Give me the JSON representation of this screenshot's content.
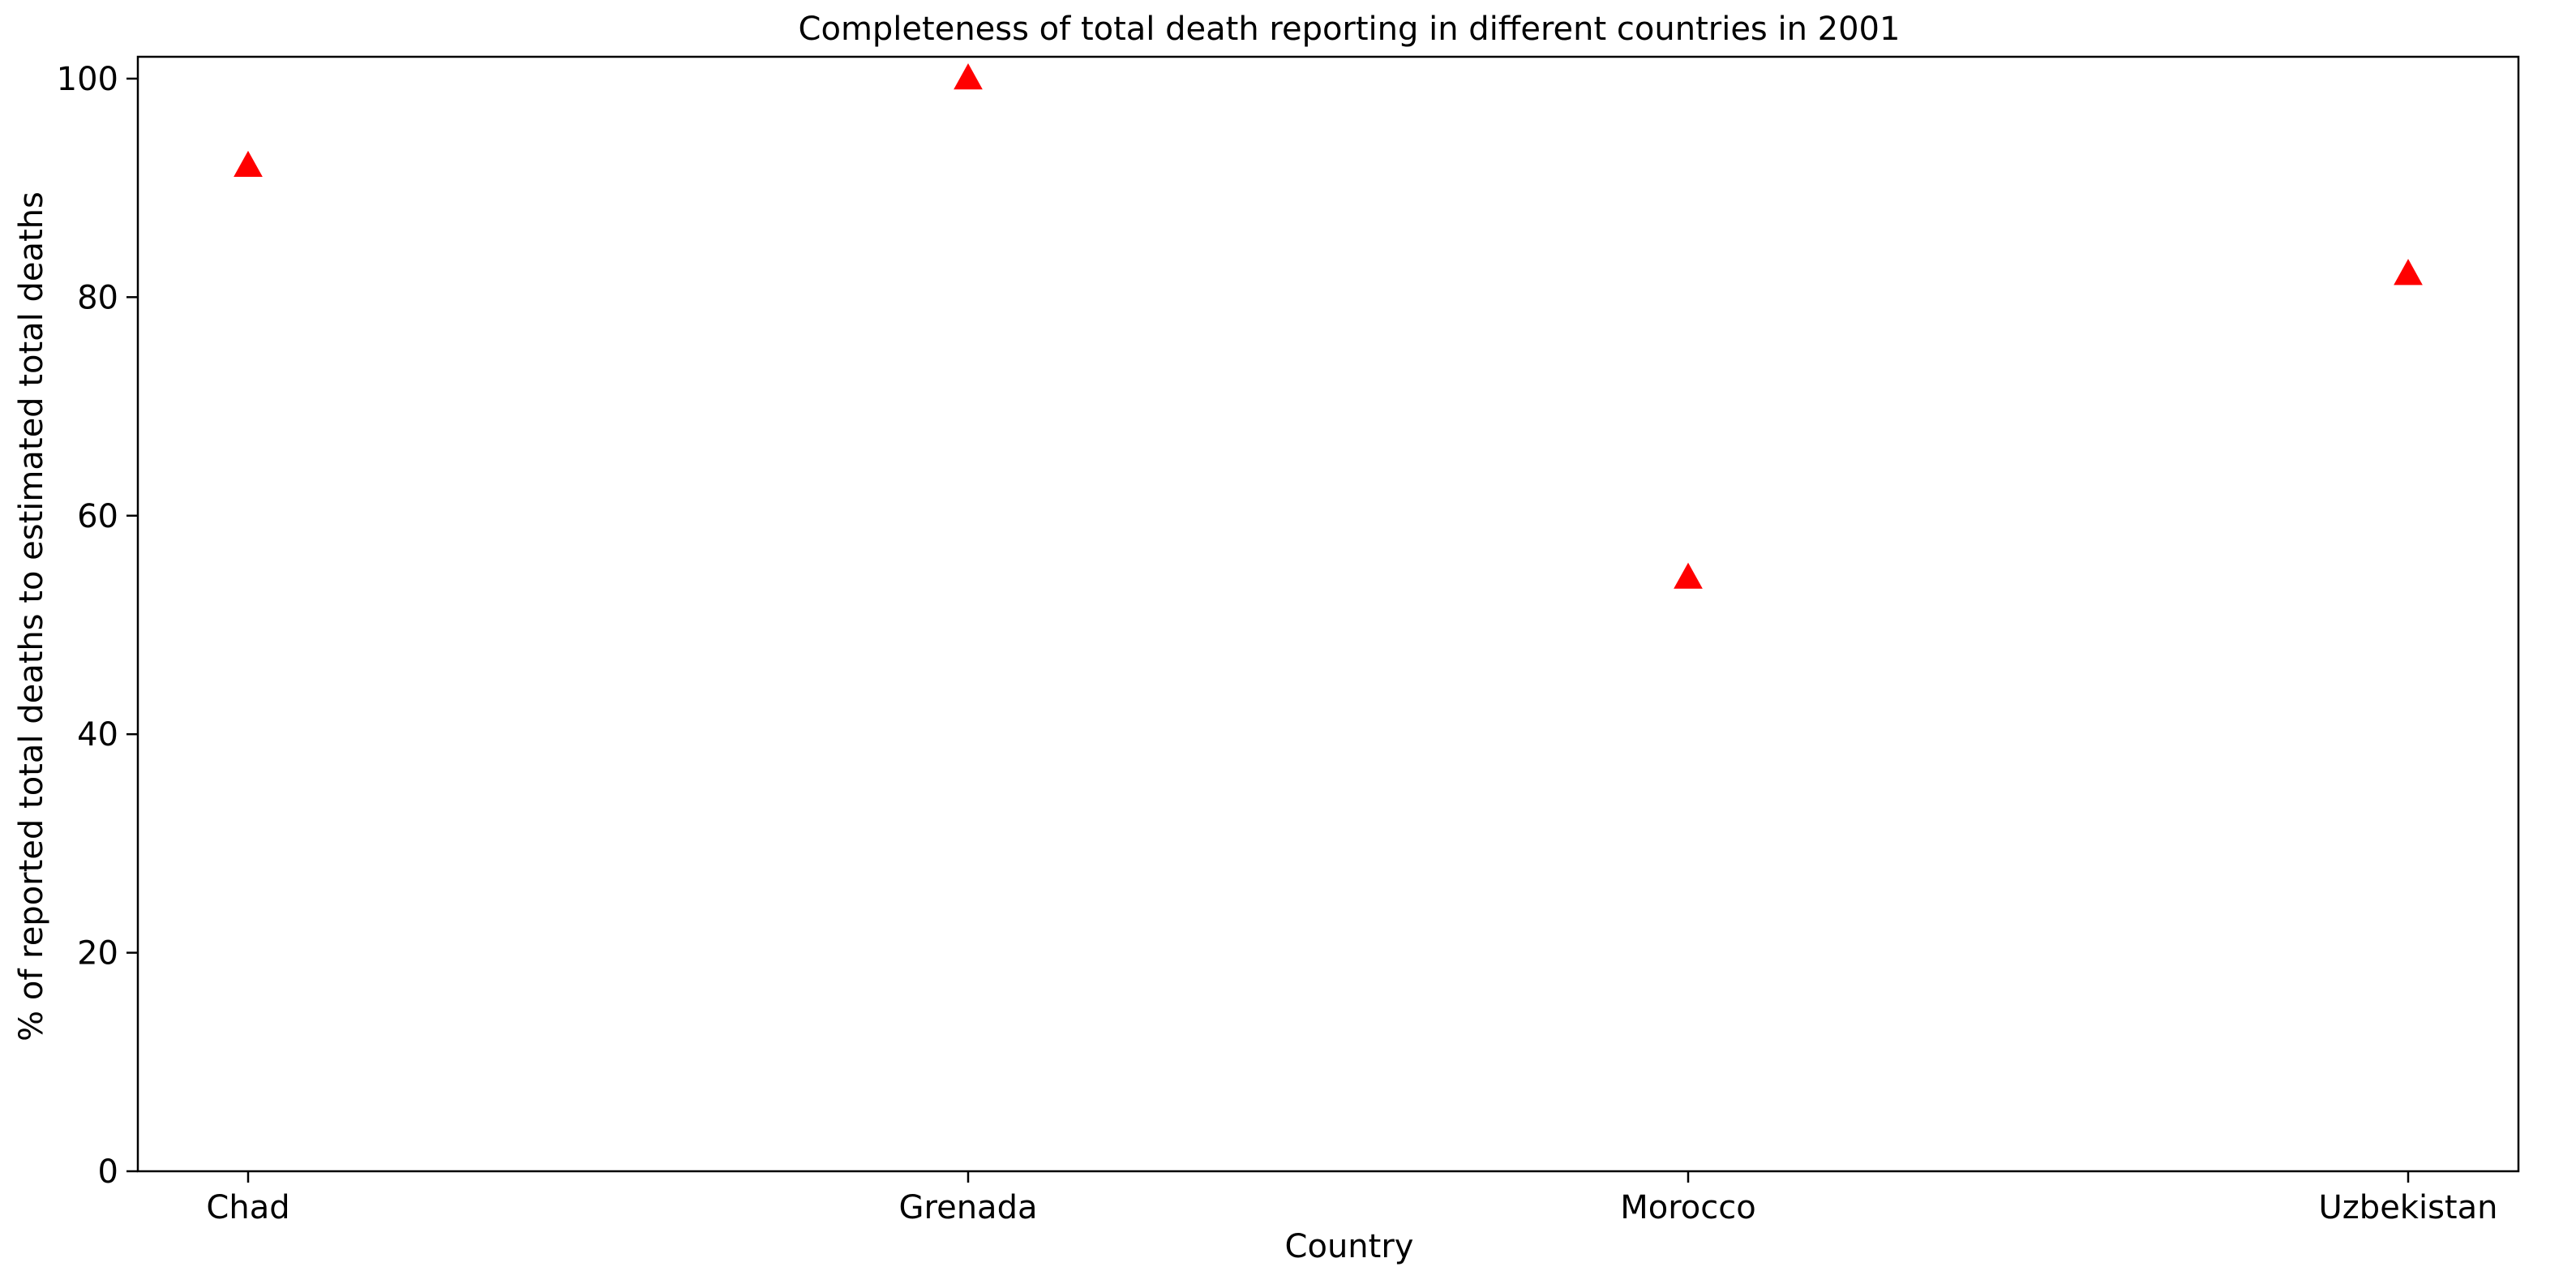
{
  "chart_data": {
    "type": "scatter",
    "title": "Completeness of total death reporting in different countries in 2001",
    "xlabel": "Country",
    "ylabel": "% of reported total deaths to estimated total deaths",
    "categories": [
      "Chad",
      "Grenada",
      "Morocco",
      "Uzbekistan"
    ],
    "values": [
      92,
      100,
      54.3,
      82.1
    ],
    "ylim": [
      0,
      102
    ],
    "yticks": [
      0,
      20,
      40,
      60,
      80,
      100
    ],
    "grid": false,
    "marker": "triangle",
    "marker_color": "#ff0000"
  }
}
